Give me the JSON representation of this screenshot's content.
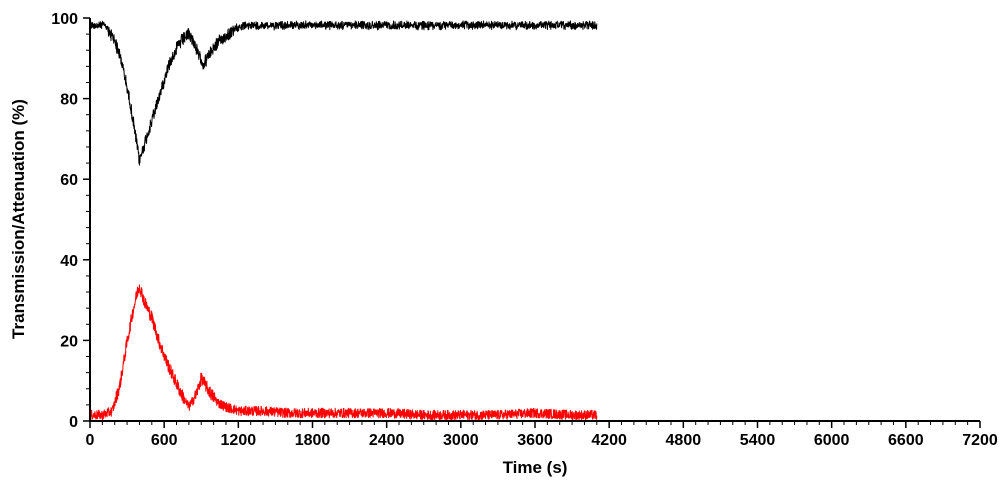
{
  "chart_data": {
    "type": "line",
    "title": "",
    "xlabel": "Time (s)",
    "ylabel": "Transmission/Attenuation (%)",
    "xlim": [
      0,
      7200
    ],
    "ylim": [
      0,
      100
    ],
    "x_ticks": [
      0,
      600,
      1200,
      1800,
      2400,
      3000,
      3600,
      4200,
      4800,
      5400,
      6000,
      6600,
      7200
    ],
    "y_ticks": [
      0,
      20,
      40,
      60,
      80,
      100
    ],
    "grid": false,
    "legend": "none",
    "series": [
      {
        "color": "#000000",
        "x": [
          0,
          120,
          200,
          260,
          320,
          370,
          400,
          460,
          520,
          580,
          640,
          700,
          760,
          800,
          840,
          880,
          920,
          960,
          1000,
          1060,
          1120,
          1200,
          1300,
          1400,
          1600,
          1800,
          2100,
          2400,
          2700,
          3000,
          3300,
          3600,
          3900,
          4100
        ],
        "values": [
          99,
          99,
          96,
          90,
          81,
          72,
          66,
          72,
          78,
          84,
          90,
          94,
          96.5,
          97.5,
          95.5,
          92,
          90,
          92,
          94,
          96,
          97.5,
          98.5,
          99,
          99,
          99,
          99,
          99,
          99,
          99,
          99,
          99,
          99,
          99,
          99
        ]
      },
      {
        "color": "#ff0000",
        "x": [
          0,
          100,
          180,
          240,
          300,
          350,
          380,
          400,
          440,
          500,
          560,
          620,
          680,
          740,
          800,
          860,
          900,
          940,
          980,
          1040,
          1100,
          1160,
          1200,
          1300,
          1400,
          1600,
          1800,
          2100,
          2400,
          2700,
          3000,
          3300,
          3600,
          3900,
          4100
        ],
        "values": [
          1,
          1,
          2,
          8,
          19,
          27,
          31,
          33,
          29,
          25,
          19,
          14,
          10,
          6,
          3,
          6,
          10,
          8,
          6,
          4,
          3,
          2.5,
          2,
          2,
          2,
          1.5,
          1.5,
          1.5,
          1.5,
          1,
          1,
          1,
          1.5,
          1,
          1
        ]
      }
    ]
  }
}
